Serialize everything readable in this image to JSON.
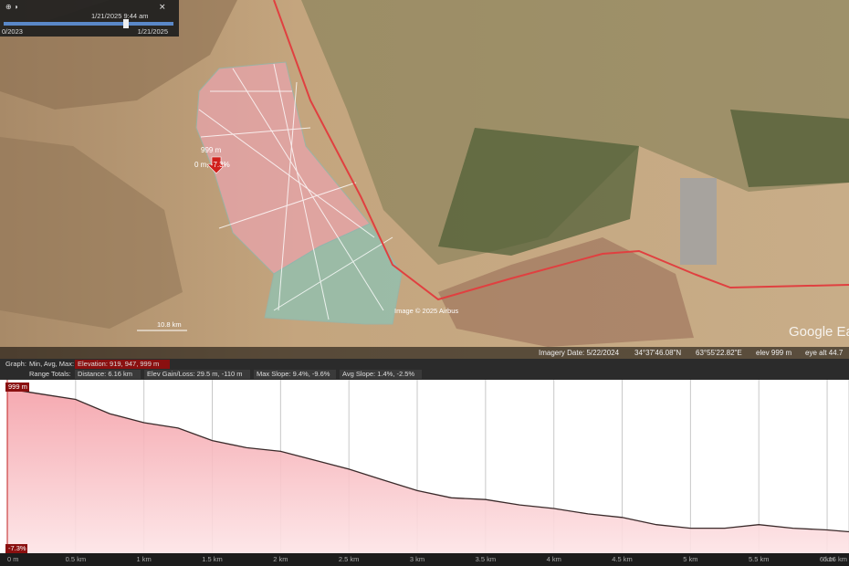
{
  "time_slider": {
    "date_time": "1/21/2025  9:44 am",
    "start": "0/2023",
    "end": "1/21/2025"
  },
  "map": {
    "marker_elevation": "999 m",
    "marker_info": "0 m, -7.3%",
    "scale": "10.8 km",
    "attribution": "Image © 2025 Airbus",
    "logo": "Google Earth"
  },
  "status_bar": {
    "imagery_date": "Imagery Date: 5/22/2024",
    "latitude": "34°37'46.08\"N",
    "longitude": "63°55'22.82\"E",
    "elevation": "elev  999 m",
    "eye_altitude": "eye alt 44.7"
  },
  "profile_header": {
    "graph": "Graph:",
    "min_avg_max": "Min, Avg, Max:",
    "elevation": "Elevation: 919, 947, 999 m",
    "range_totals": "Range Totals:",
    "distance": "Distance: 6.16 km",
    "elev_gain_loss": "Elev Gain/Loss: 29.5 m, -110 m",
    "max_slope": "Max Slope: 9.4%, -9.6%",
    "avg_slope": "Avg Slope: 1.4%, -2.5%"
  },
  "cursor": {
    "elevation": "999 m",
    "slope": "-7.3%"
  },
  "chart_data": {
    "type": "area",
    "x": [
      0,
      0.25,
      0.5,
      0.75,
      1,
      1.25,
      1.5,
      1.75,
      2,
      2.25,
      2.5,
      2.75,
      3,
      3.25,
      3.5,
      3.75,
      4,
      4.25,
      4.5,
      4.75,
      5,
      5.25,
      5.5,
      5.75,
      6,
      6.16
    ],
    "values": [
      999,
      996,
      993,
      985,
      980,
      977,
      970,
      966,
      964,
      959,
      954,
      948,
      942,
      938,
      937,
      934,
      932,
      929,
      927,
      923,
      921,
      921,
      923,
      921,
      920,
      919
    ],
    "xlim": [
      0,
      6.16
    ],
    "xticks": [
      {
        "value": 0,
        "label": "0 m"
      },
      {
        "value": 0.5,
        "label": "0.5 km"
      },
      {
        "value": 1,
        "label": "1 km"
      },
      {
        "value": 1.5,
        "label": "1.5 km"
      },
      {
        "value": 2,
        "label": "2 km"
      },
      {
        "value": 2.5,
        "label": "2.5 km"
      },
      {
        "value": 3,
        "label": "3 km"
      },
      {
        "value": 3.5,
        "label": "3.5 km"
      },
      {
        "value": 4,
        "label": "4 km"
      },
      {
        "value": 4.5,
        "label": "4.5 km"
      },
      {
        "value": 5,
        "label": "5 km"
      },
      {
        "value": 5.5,
        "label": "5.5 km"
      },
      {
        "value": 6,
        "label": "6 km"
      },
      {
        "value": 6.16,
        "label": "6.16 km"
      }
    ],
    "ylim": [
      907,
      1004
    ],
    "grid": true,
    "color": "#3a2a2a",
    "fill_color": "#f4a0a8"
  }
}
